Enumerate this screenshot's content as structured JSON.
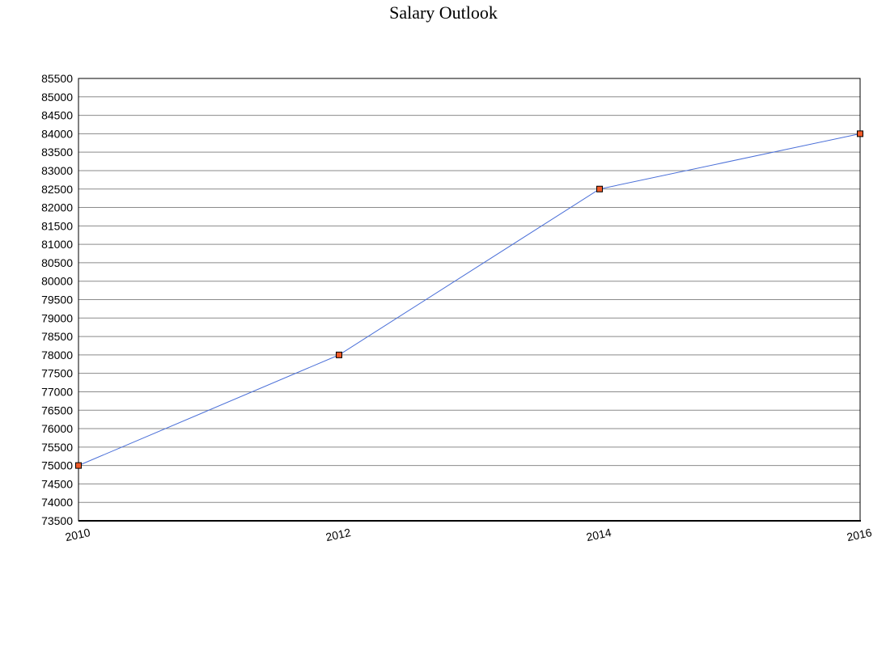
{
  "chart_data": {
    "type": "line",
    "title": "Salary Outlook",
    "xlabel": "",
    "ylabel": "",
    "x": [
      2010,
      2012,
      2014,
      2016
    ],
    "x_tick_labels": [
      "2010",
      "2012",
      "2014",
      "2016"
    ],
    "series": [
      {
        "values": [
          75000,
          78000,
          82500,
          84000
        ],
        "color": "#4a6fd8",
        "marker_color": "#f05a28"
      }
    ],
    "ylim": [
      73500,
      85500
    ],
    "y_tick_step": 500,
    "xlim": [
      2010,
      2016
    ],
    "grid": true,
    "legend": "none"
  }
}
